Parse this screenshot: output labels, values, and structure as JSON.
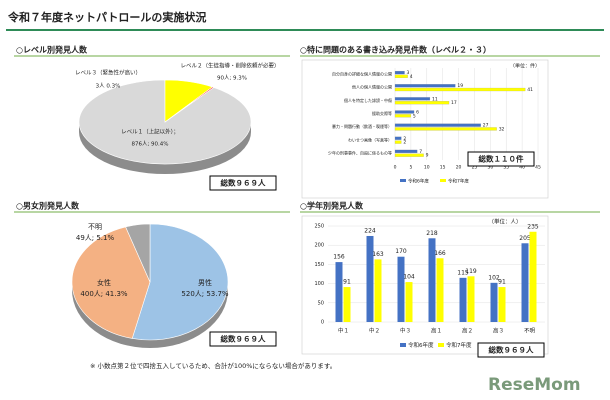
{
  "title": "令和７年度ネットパトロールの実施状況",
  "chart_data": [
    {
      "type": "pie",
      "title": "○レベル別発見人数",
      "categories": [
        "レベル１（上記以外）；",
        "レベル２（生徒指導・削除依頼が必要）",
        "レベル３（緊急性が高い）"
      ],
      "values": [
        876,
        90,
        3
      ],
      "value_labels": [
        "876人; 90.4%",
        "90人; 9.3%",
        "3人 0.3%"
      ],
      "colors": [
        "#d9d9d9",
        "#ffff00",
        "#ff0000"
      ],
      "total_label": "総数９６９人"
    },
    {
      "type": "hbar",
      "title": "○特に問題のある書き込み発見件数（レベル２・３）",
      "unit": "（単位：件）",
      "categories": [
        "自分自身の詳細な個人情報の公開",
        "他人の個人情報の公開",
        "個人を特定した誹謗・中傷",
        "援助交際等",
        "暴力・問題行動（飲酒・喫煙等）",
        "わいせつ画像（写真等）",
        "少年の刑事事件、自殺に係るもの等"
      ],
      "series": [
        {
          "name": "令和6年度",
          "color": "#4472c4",
          "values": [
            3,
            19,
            11,
            6,
            27,
            2,
            7
          ]
        },
        {
          "name": "令和7年度",
          "color": "#ffff00",
          "values": [
            4,
            41,
            17,
            5,
            32,
            2,
            9
          ]
        }
      ],
      "xlim": [
        0,
        45
      ],
      "xticks": [
        0,
        5,
        10,
        15,
        20,
        25,
        30,
        35,
        40,
        45
      ],
      "grid": true,
      "total_label": "総数１１０件"
    },
    {
      "type": "pie",
      "title": "○男女別発見人数",
      "categories": [
        "男性",
        "女性",
        "不明"
      ],
      "values": [
        520,
        400,
        49
      ],
      "value_labels": [
        "520人; 53.7%",
        "400人; 41.3%",
        "49人; 5.1%"
      ],
      "colors": [
        "#9dc3e6",
        "#f4b183",
        "#a5a5a5"
      ],
      "total_label": "総数９６９人"
    },
    {
      "type": "bar",
      "title": "○学年別発見人数",
      "unit": "（単位：人）",
      "categories": [
        "中１",
        "中２",
        "中３",
        "高１",
        "高２",
        "高３",
        "不明"
      ],
      "series": [
        {
          "name": "令和6年度",
          "color": "#4472c4",
          "values": [
            156,
            224,
            170,
            218,
            115,
            102,
            205
          ]
        },
        {
          "name": "令和7年度",
          "color": "#ffff00",
          "values": [
            91,
            163,
            104,
            166,
            119,
            91,
            235
          ]
        }
      ],
      "ylim": [
        0,
        250
      ],
      "yticks": [
        0,
        50,
        100,
        150,
        200,
        250
      ],
      "grid": true,
      "total_label": "総数９６９人"
    }
  ],
  "footnote": "※ 小数点第２位で四捨五入しているため、合計が100%にならない場合があります。",
  "logo": "ReseMom"
}
